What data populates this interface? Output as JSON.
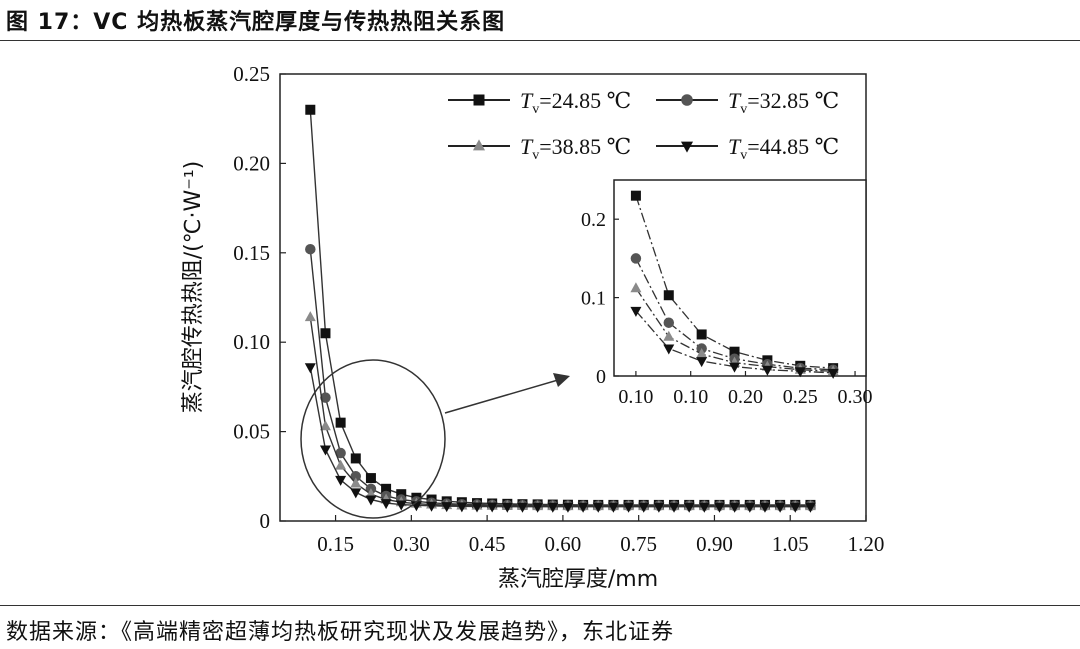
{
  "figure": {
    "title": "图 17：VC 均热板蒸汽腔厚度与传热热阻关系图",
    "source": "数据来源：《高端精密超薄均热板研究现状及发展趋势》，东北证券"
  },
  "chart_data": [
    {
      "type": "line",
      "xlabel": "蒸汽腔厚度/mm",
      "ylabel": "蒸汽腔传热热阻/(℃·W⁻¹)",
      "xlim": [
        0.04,
        1.2
      ],
      "ylim": [
        0,
        0.25
      ],
      "x_ticks": [
        {
          "value": 0.15,
          "label": "0.15"
        },
        {
          "value": 0.3,
          "label": "0.30"
        },
        {
          "value": 0.45,
          "label": "0.45"
        },
        {
          "value": 0.6,
          "label": "0.60"
        },
        {
          "value": 0.75,
          "label": "0.75"
        },
        {
          "value": 0.9,
          "label": "0.90"
        },
        {
          "value": 1.05,
          "label": "1.05"
        },
        {
          "value": 1.2,
          "label": "1.20"
        }
      ],
      "y_ticks": [
        {
          "value": 0,
          "label": "0"
        },
        {
          "value": 0.05,
          "label": "0.05"
        },
        {
          "value": 0.1,
          "label": "0.10"
        },
        {
          "value": 0.15,
          "label": "0.15"
        },
        {
          "value": 0.2,
          "label": "0.20"
        },
        {
          "value": 0.25,
          "label": "0.25"
        }
      ],
      "x": [
        0.1,
        0.13,
        0.16,
        0.19,
        0.22,
        0.25,
        0.28,
        0.31,
        0.34,
        0.37,
        0.4,
        0.43,
        0.46,
        0.49,
        0.52,
        0.55,
        0.58,
        0.61,
        0.64,
        0.67,
        0.7,
        0.73,
        0.76,
        0.79,
        0.82,
        0.85,
        0.88,
        0.91,
        0.94,
        0.97,
        1.0,
        1.03,
        1.06,
        1.09
      ],
      "series": [
        {
          "name": "T_v=24.85 ℃",
          "label_main": "T",
          "label_sub": "v",
          "label_rest": "=24.85 ℃",
          "marker": "square",
          "color": "#111111",
          "values": [
            0.23,
            0.105,
            0.055,
            0.035,
            0.024,
            0.018,
            0.015,
            0.013,
            0.012,
            0.011,
            0.0105,
            0.01,
            0.0098,
            0.0096,
            0.0094,
            0.0093,
            0.0092,
            0.0091,
            0.009,
            0.009,
            0.009,
            0.009,
            0.009,
            0.009,
            0.009,
            0.009,
            0.009,
            0.009,
            0.009,
            0.009,
            0.009,
            0.009,
            0.009,
            0.009
          ]
        },
        {
          "name": "T_v=32.85 ℃",
          "label_main": "T",
          "label_sub": "v",
          "label_rest": "=32.85 ℃",
          "marker": "circle",
          "color": "#555555",
          "values": [
            0.152,
            0.069,
            0.038,
            0.025,
            0.018,
            0.014,
            0.012,
            0.011,
            0.0102,
            0.0097,
            0.0094,
            0.0092,
            0.009,
            0.0089,
            0.0088,
            0.0087,
            0.0087,
            0.0086,
            0.0086,
            0.0086,
            0.0086,
            0.0086,
            0.0086,
            0.0086,
            0.0086,
            0.0086,
            0.0086,
            0.0086,
            0.0086,
            0.0086,
            0.0086,
            0.0086,
            0.0086,
            0.0086
          ]
        },
        {
          "name": "T_v=38.85 ℃",
          "label_main": "T",
          "label_sub": "v",
          "label_rest": "=38.85 ℃",
          "marker": "triangle-up",
          "color": "#8a8a8a",
          "values": [
            0.114,
            0.053,
            0.031,
            0.021,
            0.015,
            0.012,
            0.0105,
            0.0097,
            0.0092,
            0.0089,
            0.0087,
            0.0086,
            0.0085,
            0.0084,
            0.0084,
            0.0083,
            0.0083,
            0.0083,
            0.0083,
            0.0083,
            0.0083,
            0.0083,
            0.0083,
            0.0083,
            0.0083,
            0.0083,
            0.0083,
            0.0083,
            0.0083,
            0.0083,
            0.0083,
            0.0083,
            0.0083,
            0.0083
          ]
        },
        {
          "name": "T_v=44.85 ℃",
          "label_main": "T",
          "label_sub": "v",
          "label_rest": "=44.85 ℃",
          "marker": "triangle-down",
          "color": "#111111",
          "values": [
            0.086,
            0.04,
            0.023,
            0.016,
            0.012,
            0.01,
            0.0092,
            0.0088,
            0.0085,
            0.0083,
            0.0082,
            0.0081,
            0.0081,
            0.008,
            0.008,
            0.008,
            0.008,
            0.008,
            0.008,
            0.008,
            0.008,
            0.008,
            0.008,
            0.008,
            0.008,
            0.008,
            0.008,
            0.008,
            0.008,
            0.008,
            0.008,
            0.008,
            0.008,
            0.008
          ]
        }
      ],
      "legend": "top-right",
      "annotation": "circle around the knee of the curves with an arrow pointing to the inset"
    },
    {
      "type": "line",
      "role": "inset",
      "xlim": [
        0.08,
        0.31
      ],
      "ylim": [
        0,
        0.25
      ],
      "x_tick_labels": [
        "0.10",
        "0.10",
        "0.20",
        "0.25",
        "0.30"
      ],
      "y_ticks": [
        {
          "value": 0,
          "label": "0"
        },
        {
          "value": 0.1,
          "label": "0.1"
        },
        {
          "value": 0.2,
          "label": "0.2"
        }
      ],
      "x": [
        0.1,
        0.13,
        0.16,
        0.19,
        0.22,
        0.25,
        0.28
      ],
      "series": [
        {
          "marker": "square",
          "color": "#111111",
          "values": [
            0.23,
            0.103,
            0.053,
            0.031,
            0.02,
            0.013,
            0.01
          ]
        },
        {
          "marker": "circle",
          "color": "#555555",
          "values": [
            0.15,
            0.068,
            0.035,
            0.022,
            0.015,
            0.01,
            0.008
          ]
        },
        {
          "marker": "triangle-up",
          "color": "#8a8a8a",
          "values": [
            0.112,
            0.05,
            0.028,
            0.017,
            0.012,
            0.008,
            0.006
          ]
        },
        {
          "marker": "triangle-down",
          "color": "#111111",
          "values": [
            0.083,
            0.035,
            0.019,
            0.012,
            0.008,
            0.006,
            0.004
          ]
        }
      ]
    }
  ]
}
